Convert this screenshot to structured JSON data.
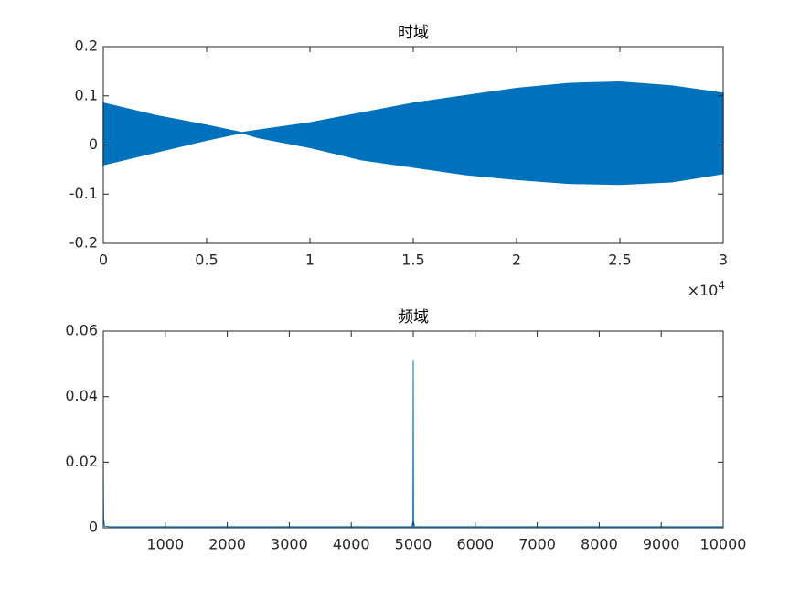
{
  "chart_data": [
    {
      "type": "band",
      "title": "时域",
      "x": [
        0,
        0.25,
        0.5,
        0.67,
        0.75,
        1,
        1.25,
        1.5,
        1.75,
        2,
        2.25,
        2.5,
        2.75,
        3
      ],
      "upper": [
        0.085,
        0.06,
        0.04,
        0.025,
        0.03,
        0.045,
        0.065,
        0.085,
        0.1,
        0.115,
        0.125,
        0.128,
        0.12,
        0.105
      ],
      "lower": [
        -0.04,
        -0.015,
        0.01,
        0.025,
        0.015,
        -0.005,
        -0.03,
        -0.045,
        -0.06,
        -0.07,
        -0.078,
        -0.08,
        -0.075,
        -0.058
      ],
      "color": "#0072bd",
      "xlim": [
        0,
        3
      ],
      "xticks": [
        0,
        0.5,
        1,
        1.5,
        2,
        2.5,
        3
      ],
      "x_multiplier": {
        "base": "×10",
        "exponent": "4"
      },
      "ylim": [
        -0.2,
        0.2
      ],
      "yticks": [
        -0.2,
        -0.1,
        0,
        0.1,
        0.2
      ]
    },
    {
      "type": "line",
      "title": "频域",
      "x": [
        0,
        5,
        20,
        100,
        4980,
        4995,
        5000,
        5005,
        5020,
        10000
      ],
      "values": [
        0.022,
        0.003,
        0.0005,
        0.0003,
        0.0003,
        0.002,
        0.051,
        0.002,
        0.0003,
        0.0003
      ],
      "color": "#0072bd",
      "xlim": [
        0,
        10000
      ],
      "xticks": [
        1000,
        2000,
        3000,
        4000,
        5000,
        6000,
        7000,
        8000,
        9000,
        10000
      ],
      "ylim": [
        0,
        0.06
      ],
      "yticks": [
        0,
        0.02,
        0.04,
        0.06
      ]
    }
  ]
}
